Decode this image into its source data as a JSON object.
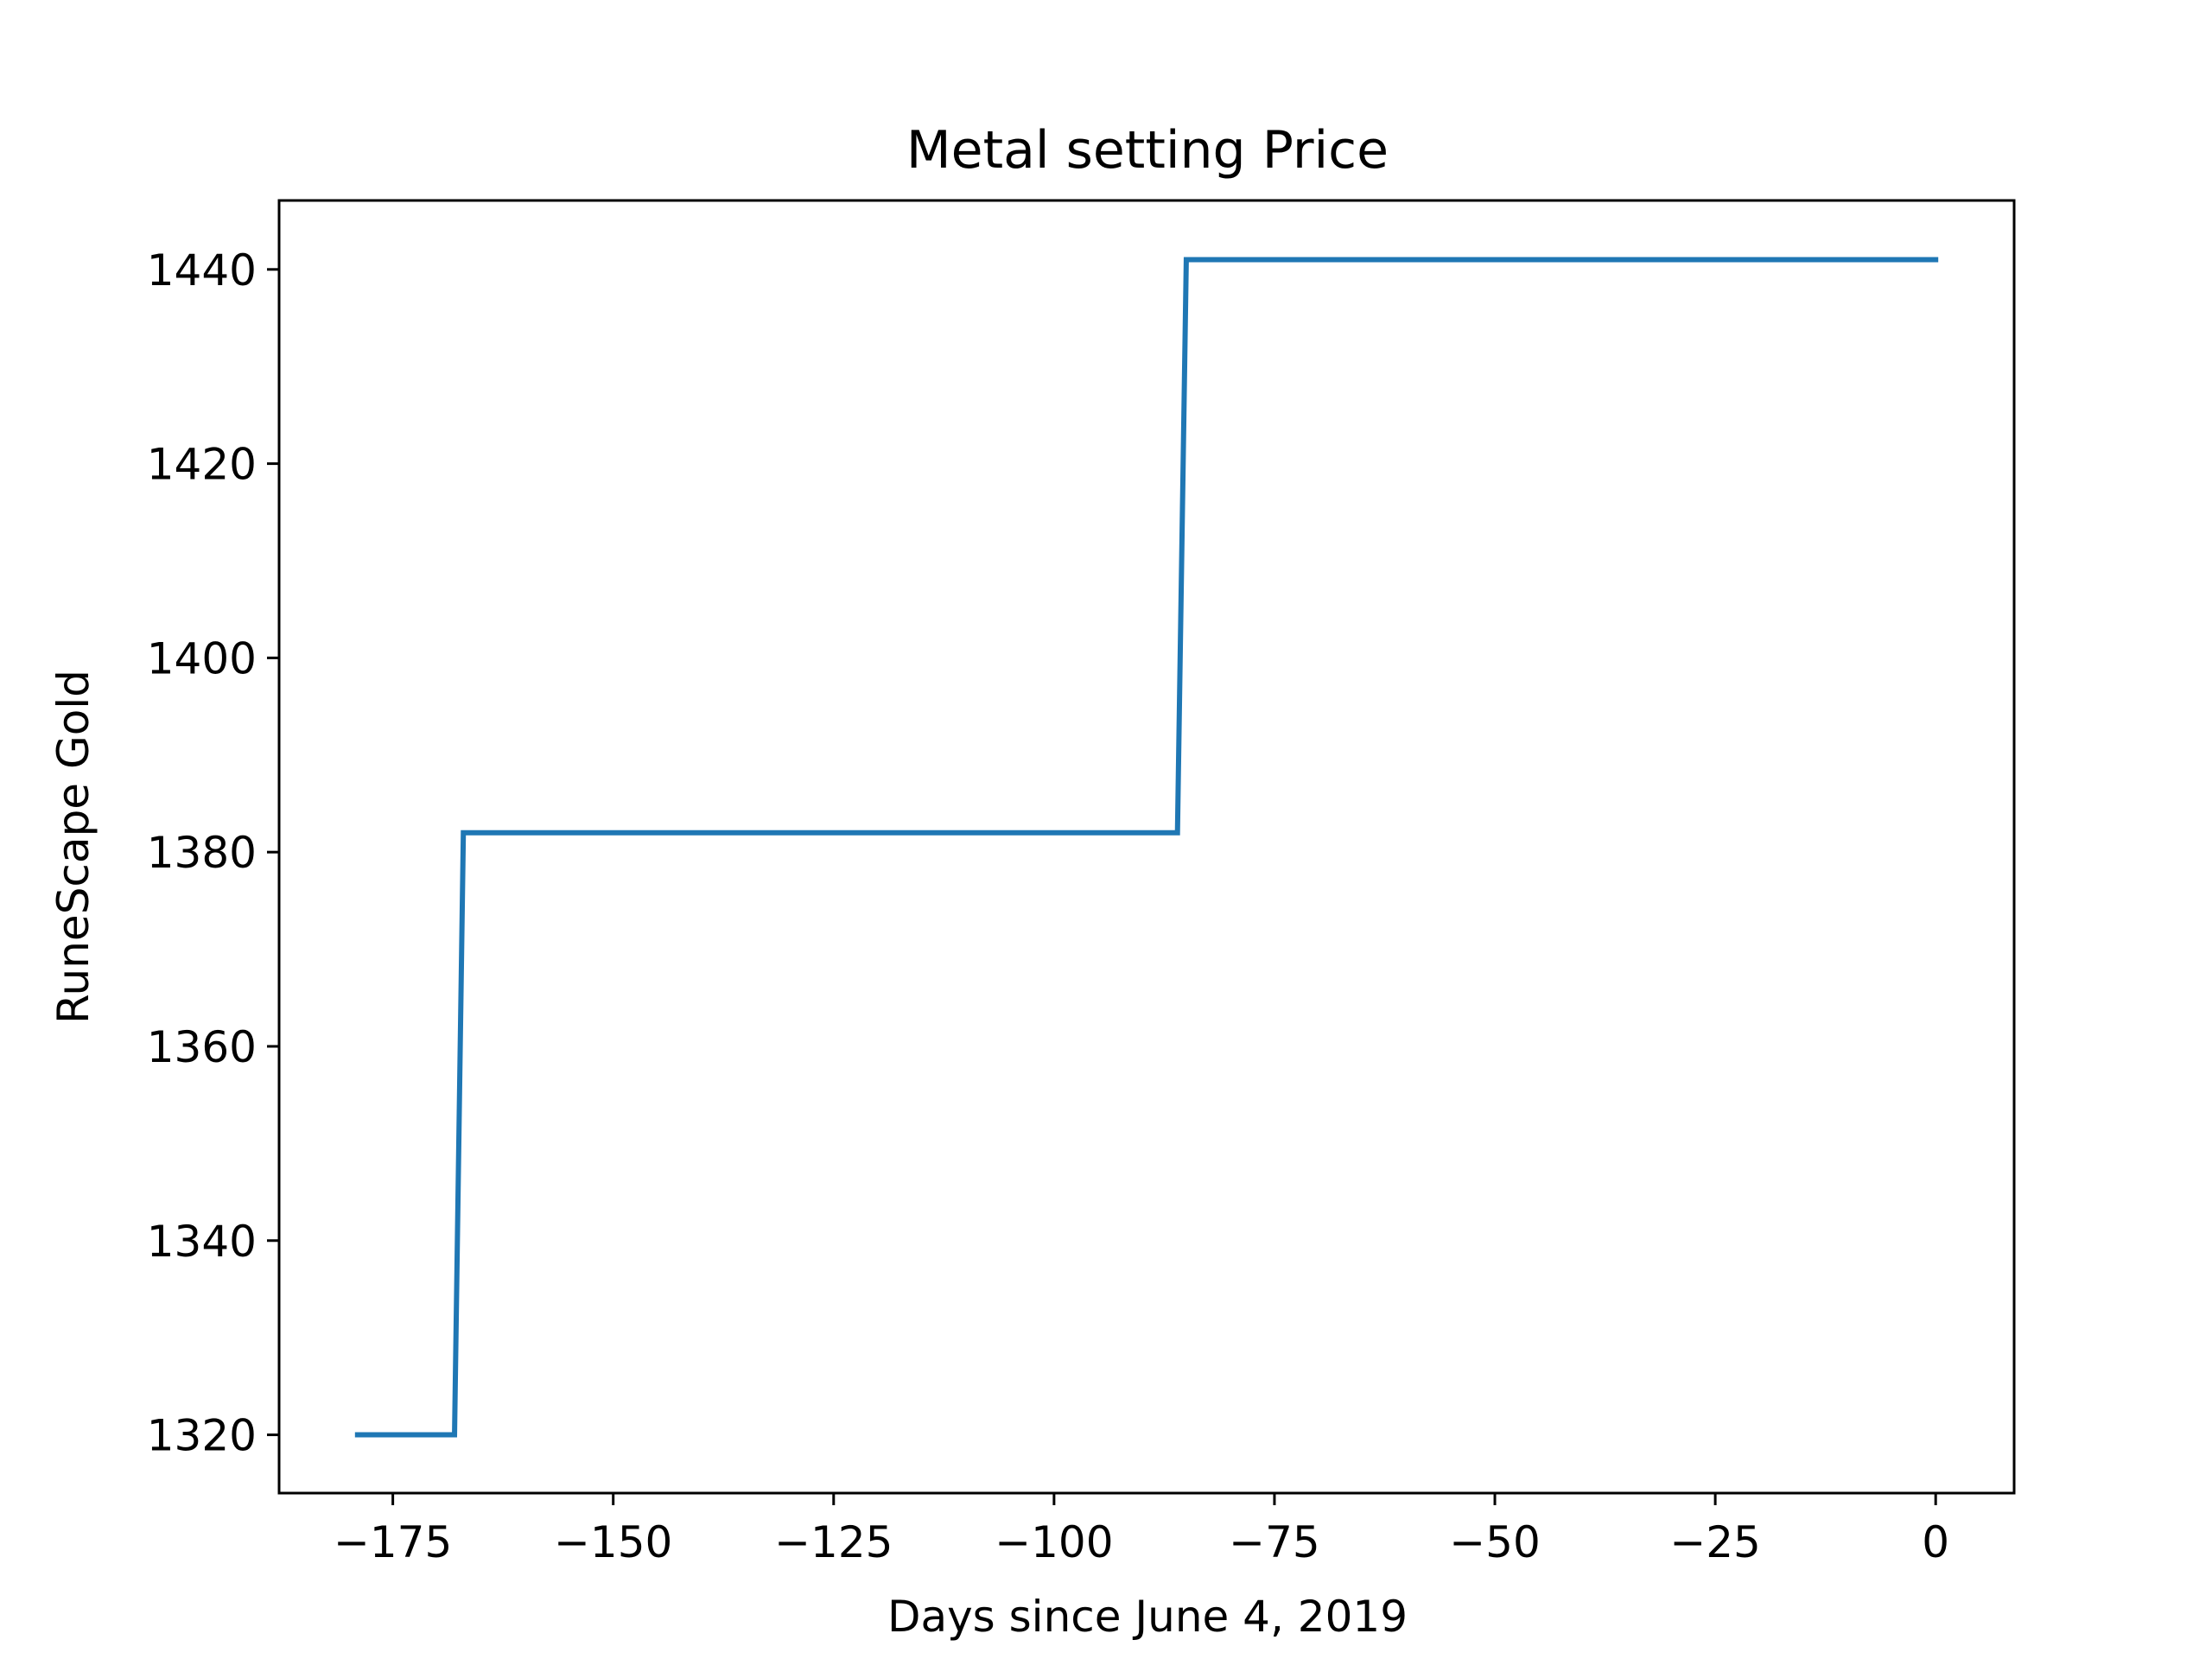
{
  "chart_data": {
    "type": "line",
    "title": "Metal setting Price",
    "xlabel": "Days since June 4, 2019",
    "ylabel": "RuneScape Gold",
    "xlim": [
      -187.9,
      8.9
    ],
    "ylim": [
      1314.0,
      1447.1
    ],
    "x_ticks": [
      -175,
      -150,
      -125,
      -100,
      -75,
      -50,
      -25,
      0
    ],
    "x_tick_labels": [
      "−175",
      "−150",
      "−125",
      "−100",
      "−75",
      "−50",
      "−25",
      "0"
    ],
    "y_ticks": [
      1320,
      1340,
      1360,
      1380,
      1400,
      1420,
      1440
    ],
    "y_tick_labels": [
      "1320",
      "1340",
      "1360",
      "1380",
      "1400",
      "1420",
      "1440"
    ],
    "grid": false,
    "series": [
      {
        "color": "#1f77b4",
        "x": [
          -179,
          -168,
          -167,
          -86,
          -85,
          0
        ],
        "y": [
          1320,
          1320,
          1382,
          1382,
          1441,
          1441
        ]
      }
    ]
  }
}
